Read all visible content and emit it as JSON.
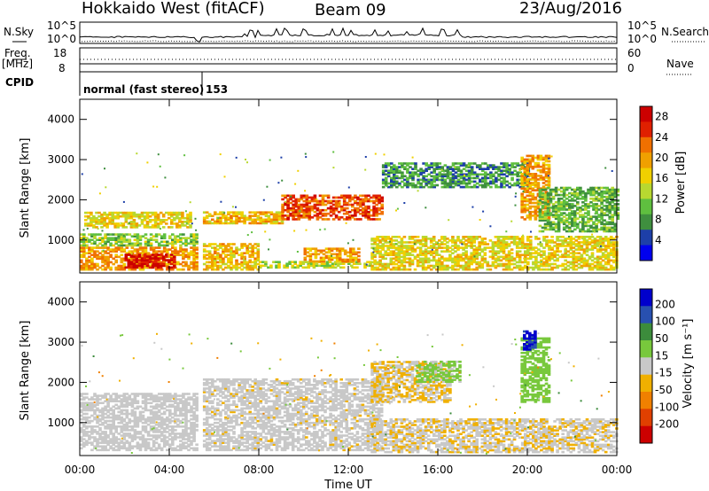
{
  "header": {
    "station": "Hokkaido West (fitACF)",
    "beam": "Beam 09",
    "date": "23/Aug/2016"
  },
  "side_labels": {
    "nsky": "N.Sky",
    "freq": "Freq.",
    "freq_unit": "[MHz]",
    "cpid": "CPID",
    "nsearch": "N.Search",
    "nave": "Nave",
    "noise_ticks_left": [
      "10^5",
      "10^0"
    ],
    "noise_ticks_right": [
      "10^5",
      "10^0"
    ],
    "freq_ticks": [
      "18",
      "8"
    ],
    "nave_ticks": [
      "60",
      "0"
    ]
  },
  "cpid_text": "normal (fast stereo)",
  "cpid_value": "153",
  "colors": {
    "power": [
      "#0000ee",
      "#1d3fa8",
      "#3f8f3f",
      "#5fbf3f",
      "#b8d830",
      "#f0d000",
      "#f0a000",
      "#f07000",
      "#e02000",
      "#cc0000"
    ],
    "velocity": [
      "#0000cc",
      "#2850b0",
      "#3c8c3c",
      "#78c83c",
      "#c8c8c8",
      "#f0b000",
      "#f08000",
      "#e04000",
      "#cc0000"
    ]
  },
  "chart_data": [
    {
      "type": "heatmap",
      "name": "power",
      "ylabel": "Slant Range [km]",
      "xlabel": "Time UT",
      "x_ticks": [
        "00:00",
        "04:00",
        "08:00",
        "12:00",
        "16:00",
        "20:00",
        "00:00"
      ],
      "x_range_hours": [
        0,
        24
      ],
      "y_ticks": [
        1000,
        2000,
        3000,
        4000
      ],
      "ylim": [
        180,
        4500
      ],
      "colorbar": {
        "label": "Power [dB]",
        "ticks": [
          "4",
          "8",
          "12",
          "16",
          "20",
          "24",
          "28"
        ],
        "range": [
          0,
          30
        ]
      },
      "regions": [
        {
          "t": [
            0.0,
            5.2
          ],
          "r": [
            250,
            800
          ],
          "v": 20
        },
        {
          "t": [
            2.0,
            4.2
          ],
          "r": [
            300,
            650
          ],
          "v": 28
        },
        {
          "t": [
            0.0,
            5.2
          ],
          "r": [
            850,
            1150
          ],
          "v": 12
        },
        {
          "t": [
            0.2,
            5.0
          ],
          "r": [
            1300,
            1700
          ],
          "v": 16
        },
        {
          "t": [
            5.5,
            9.0
          ],
          "r": [
            1400,
            1700
          ],
          "v": 18
        },
        {
          "t": [
            9.0,
            13.5
          ],
          "r": [
            1500,
            2100
          ],
          "v": 24
        },
        {
          "t": [
            5.5,
            8.0
          ],
          "r": [
            250,
            900
          ],
          "v": 18
        },
        {
          "t": [
            8.0,
            13.0
          ],
          "r": [
            300,
            450
          ],
          "v": 14
        },
        {
          "t": [
            10.0,
            12.5
          ],
          "r": [
            450,
            800
          ],
          "v": 20
        },
        {
          "t": [
            13.0,
            24.0
          ],
          "r": [
            250,
            1100
          ],
          "v": 16
        },
        {
          "t": [
            13.5,
            20.0
          ],
          "r": [
            2300,
            2900
          ],
          "v": 8
        },
        {
          "t": [
            19.7,
            21.0
          ],
          "r": [
            1500,
            3100
          ],
          "v": 20
        },
        {
          "t": [
            20.5,
            24.0
          ],
          "r": [
            1200,
            2300
          ],
          "v": 10
        }
      ]
    },
    {
      "type": "heatmap",
      "name": "velocity",
      "ylabel": "Slant Range [km]",
      "xlabel": "Time UT",
      "x_ticks": [
        "00:00",
        "04:00",
        "08:00",
        "12:00",
        "16:00",
        "20:00",
        "00:00"
      ],
      "x_range_hours": [
        0,
        24
      ],
      "y_ticks": [
        1000,
        2000,
        3000,
        4000
      ],
      "ylim": [
        180,
        4500
      ],
      "colorbar": {
        "label": "Velocity [m s⁻¹]",
        "ticks": [
          "200",
          "100",
          "50",
          "15",
          "-15",
          "-50",
          "-100",
          "-200"
        ],
        "range": [
          -250,
          250
        ]
      },
      "regions": [
        {
          "t": [
            0.0,
            5.2
          ],
          "r": [
            300,
            1700
          ],
          "v": 0
        },
        {
          "t": [
            5.5,
            13.5
          ],
          "r": [
            300,
            2100
          ],
          "v": -10
        },
        {
          "t": [
            13.0,
            16.5
          ],
          "r": [
            1500,
            2500
          ],
          "v": -30
        },
        {
          "t": [
            13.0,
            24.0
          ],
          "r": [
            250,
            1100
          ],
          "v": -20
        },
        {
          "t": [
            15.0,
            17.0
          ],
          "r": [
            2000,
            2500
          ],
          "v": 40
        },
        {
          "t": [
            19.7,
            21.0
          ],
          "r": [
            1500,
            3100
          ],
          "v": 60
        },
        {
          "t": [
            19.8,
            20.3
          ],
          "r": [
            2800,
            3300
          ],
          "v": 200
        }
      ]
    }
  ]
}
